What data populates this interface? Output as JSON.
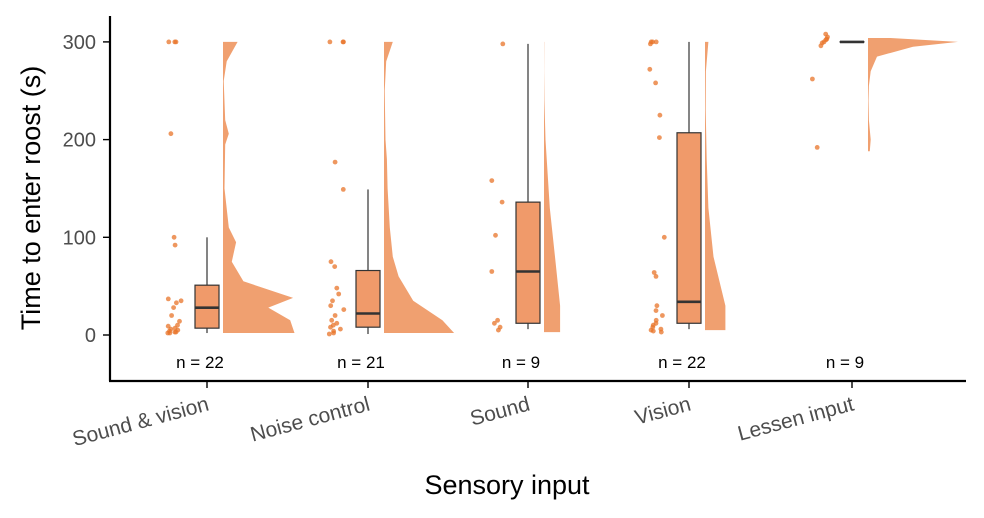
{
  "chart_data": {
    "type": "raincloud",
    "xlabel": "Sensory input",
    "ylabel": "Time to enter roost (s)",
    "ylim": [
      -46,
      326
    ],
    "yticks": [
      0,
      100,
      200,
      300
    ],
    "grid": false,
    "legend": "none",
    "colors": {
      "fill": "#f0a070",
      "box_fill": "#f09a6a",
      "point": "#e8742a",
      "line": "#333333"
    },
    "categories": [
      "Sound & vision",
      "Noise control",
      "Sound",
      "Vision",
      "Lessen input"
    ],
    "groups": [
      {
        "name": "Sound & vision",
        "n_label": "n = 22",
        "box": {
          "q1": 7,
          "median": 28,
          "q3": 51,
          "whisker_low": 2,
          "whisker_high": 100
        },
        "points": [
          300,
          300,
          300,
          206,
          100,
          92,
          37,
          35,
          33,
          28,
          20,
          14,
          10,
          9,
          7,
          6,
          5,
          4,
          3,
          3,
          2,
          2
        ],
        "density": [
          [
            2,
            0.98
          ],
          [
            15,
            0.92
          ],
          [
            28,
            0.62
          ],
          [
            38,
            0.96
          ],
          [
            55,
            0.28
          ],
          [
            75,
            0.12
          ],
          [
            95,
            0.18
          ],
          [
            110,
            0.08
          ],
          [
            150,
            0.02
          ],
          [
            195,
            0.03
          ],
          [
            206,
            0.08
          ],
          [
            220,
            0.03
          ],
          [
            260,
            0.01
          ],
          [
            280,
            0.05
          ],
          [
            300,
            0.2
          ]
        ]
      },
      {
        "name": "Noise control",
        "n_label": "n = 21",
        "box": {
          "q1": 8,
          "median": 22,
          "q3": 66,
          "whisker_low": 1,
          "whisker_high": 149
        },
        "points": [
          300,
          300,
          300,
          177,
          149,
          75,
          70,
          48,
          42,
          35,
          30,
          26,
          20,
          15,
          12,
          10,
          8,
          6,
          4,
          2,
          1
        ],
        "density": [
          [
            2,
            0.96
          ],
          [
            15,
            0.8
          ],
          [
            35,
            0.4
          ],
          [
            60,
            0.2
          ],
          [
            80,
            0.12
          ],
          [
            110,
            0.08
          ],
          [
            150,
            0.05
          ],
          [
            180,
            0.04
          ],
          [
            200,
            0.02
          ],
          [
            250,
            0.01
          ],
          [
            280,
            0.03
          ],
          [
            300,
            0.12
          ]
        ]
      },
      {
        "name": "Sound",
        "n_label": "n = 9",
        "box": {
          "q1": 12,
          "median": 65,
          "q3": 136,
          "whisker_low": 6,
          "whisker_high": 298
        },
        "points": [
          298,
          158,
          136,
          102,
          65,
          15,
          12,
          8,
          5
        ],
        "density": [
          [
            3,
            0.22
          ],
          [
            30,
            0.22
          ],
          [
            80,
            0.15
          ],
          [
            130,
            0.08
          ],
          [
            200,
            0.02
          ],
          [
            240,
            0.005
          ],
          [
            270,
            0.002
          ],
          [
            300,
            0.003
          ]
        ]
      },
      {
        "name": "Vision",
        "n_label": "n = 22",
        "box": {
          "q1": 12,
          "median": 34,
          "q3": 207,
          "whisker_low": 6,
          "whisker_high": 300
        },
        "points": [
          300,
          300,
          300,
          298,
          272,
          258,
          225,
          202,
          100,
          64,
          60,
          30,
          25,
          20,
          15,
          12,
          10,
          8,
          6,
          5,
          4,
          3
        ],
        "density": [
          [
            5,
            0.24
          ],
          [
            30,
            0.24
          ],
          [
            80,
            0.1
          ],
          [
            130,
            0.04
          ],
          [
            180,
            0.02
          ],
          [
            230,
            0.008
          ],
          [
            270,
            0.01
          ],
          [
            300,
            0.04
          ]
        ]
      },
      {
        "name": "Lessen input",
        "n_label": "n = 9",
        "box": {
          "q1": 300,
          "median": 300,
          "q3": 300,
          "whisker_low": 300,
          "whisker_high": 300
        },
        "points": [
          308,
          305,
          303,
          302,
          300,
          299,
          296,
          262,
          192
        ],
        "density": [
          [
            188,
            0.02
          ],
          [
            200,
            0.03
          ],
          [
            220,
            0.01
          ],
          [
            240,
            0.005
          ],
          [
            255,
            0.01
          ],
          [
            270,
            0.03
          ],
          [
            285,
            0.1
          ],
          [
            295,
            0.5
          ],
          [
            300,
            1.0
          ],
          [
            304,
            0.25
          ]
        ]
      }
    ]
  }
}
